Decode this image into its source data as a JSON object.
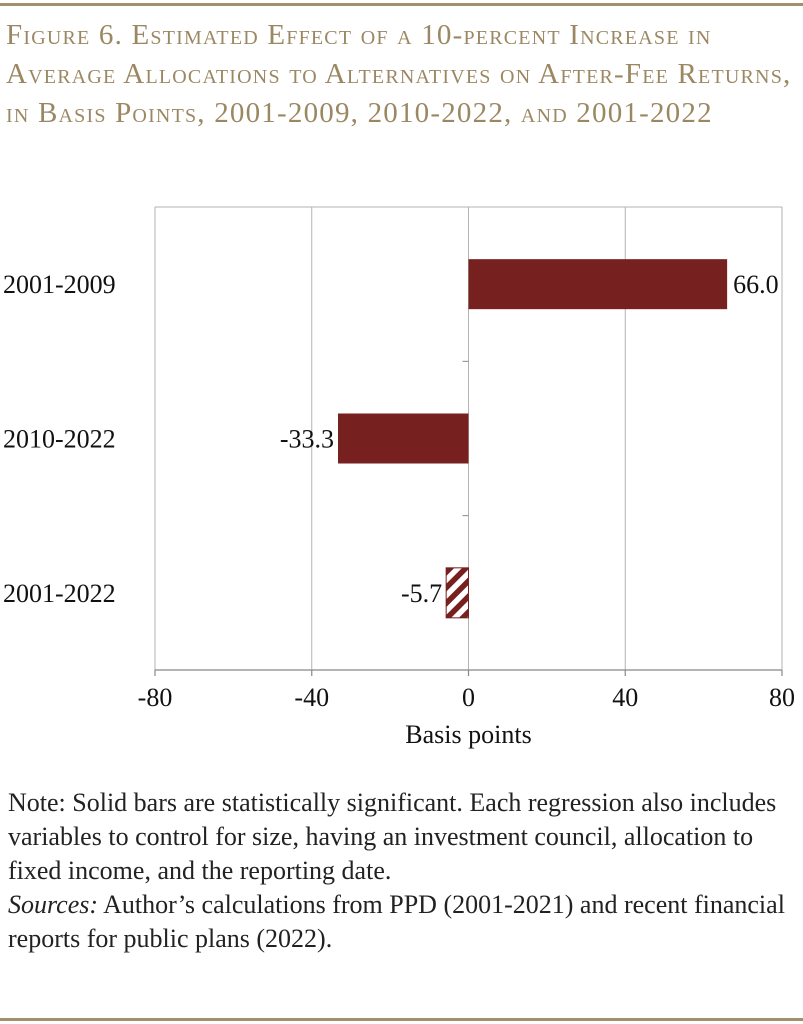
{
  "title": "Figure 6. Estimated Effect of a 10-percent Increase in Average Allocations to Alternatives on After-Fee Returns, in Basis Points, 2001-2009, 2010-2022, and 2001-2022",
  "chart_data": {
    "type": "bar",
    "orientation": "horizontal",
    "categories": [
      "2001-2009",
      "2010-2022",
      "2001-2022"
    ],
    "values": [
      66.0,
      -33.3,
      -5.7
    ],
    "value_labels": [
      "66.0",
      "-33.3",
      "-5.7"
    ],
    "statistically_significant": [
      true,
      true,
      false
    ],
    "xlabel": "Basis points",
    "xlim": [
      -80,
      80
    ],
    "xticks": [
      -80,
      -40,
      0,
      40,
      80
    ],
    "xtick_labels": [
      "-80",
      "-40",
      "0",
      "40",
      "80"
    ],
    "grid": "vertical",
    "colors": {
      "bar": "#76201f",
      "hatch_bg": "#ffffff",
      "grid": "#b3b3b3",
      "axis": "#888888"
    }
  },
  "notes": {
    "note_text": "Note: Solid bars are statistically significant.  Each regression also includes variables to control for size, having an investment council, allocation to fixed income, and the reporting date.",
    "sources_label": "Sources:",
    "sources_text": " Author’s calculations from PPD (2001-2021) and recent financial reports for public plans (2022)."
  },
  "colors": {
    "title": "#9b8862",
    "rule": "#a38f6c"
  }
}
